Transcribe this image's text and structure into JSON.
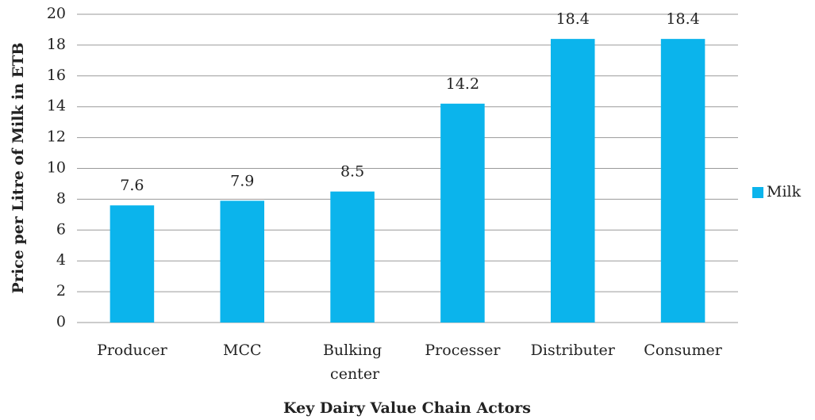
{
  "chart_data": {
    "type": "bar",
    "x_label": "Key Dairy Value Chain Actors",
    "y_label": "Price per Litre of Milk in ETB",
    "categories": [
      "Producer",
      "MCC",
      "Bulking center",
      "Processer",
      "Distributer",
      "Consumer"
    ],
    "series": [
      {
        "name": "Milk",
        "color": "#0bb4ec",
        "values": [
          7.6,
          7.9,
          8.5,
          14.2,
          18.4,
          18.4
        ]
      }
    ],
    "ylim": [
      0,
      20
    ],
    "yticks": [
      0,
      2,
      4,
      6,
      8,
      10,
      12,
      14,
      16,
      18,
      20
    ],
    "grid": true,
    "legend": "right"
  }
}
